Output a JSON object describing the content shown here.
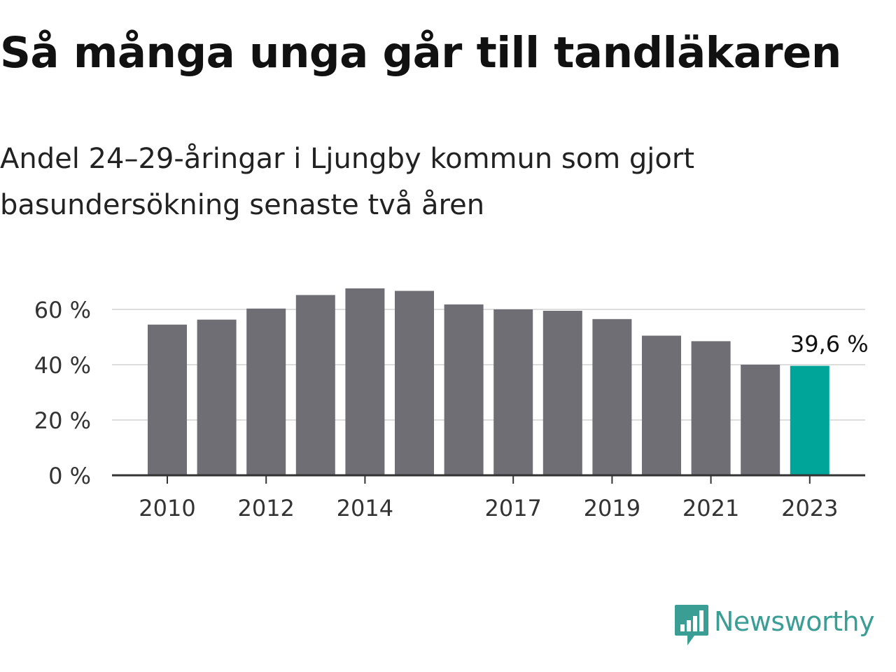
{
  "title": "Så många unga går till tandläkaren",
  "subtitle": "Andel 24–29-åringar i Ljungby kommun som gjort basundersökning senaste två åren",
  "brand": {
    "name": "Newsworthy",
    "logo_icon": "bar-chart-speech-bubble-icon"
  },
  "colors": {
    "bar": "#6f6e75",
    "highlight": "#00a59a",
    "grid": "#dddddd",
    "axis": "#333333",
    "brand": "#3a9e95"
  },
  "chart_data": {
    "type": "bar",
    "categories": [
      "2010",
      "2011",
      "2012",
      "2013",
      "2014",
      "2015",
      "2016",
      "2017",
      "2018",
      "2019",
      "2020",
      "2021",
      "2022",
      "2023"
    ],
    "values": [
      54.5,
      56.3,
      60.3,
      65.2,
      67.6,
      66.7,
      61.8,
      60.0,
      59.5,
      56.5,
      50.5,
      48.5,
      40.0,
      39.6
    ],
    "x_tick_labels": [
      "2010",
      "2012",
      "2014",
      "2017",
      "2019",
      "2021",
      "2023"
    ],
    "y_ticks": [
      0,
      20,
      40,
      60
    ],
    "y_tick_labels": [
      "0 %",
      "20 %",
      "40 %",
      "60 %"
    ],
    "ylim": [
      0,
      70
    ],
    "highlight_index": 13,
    "annotation": "39,6 %",
    "grid": true,
    "xlabel": "",
    "ylabel": ""
  }
}
